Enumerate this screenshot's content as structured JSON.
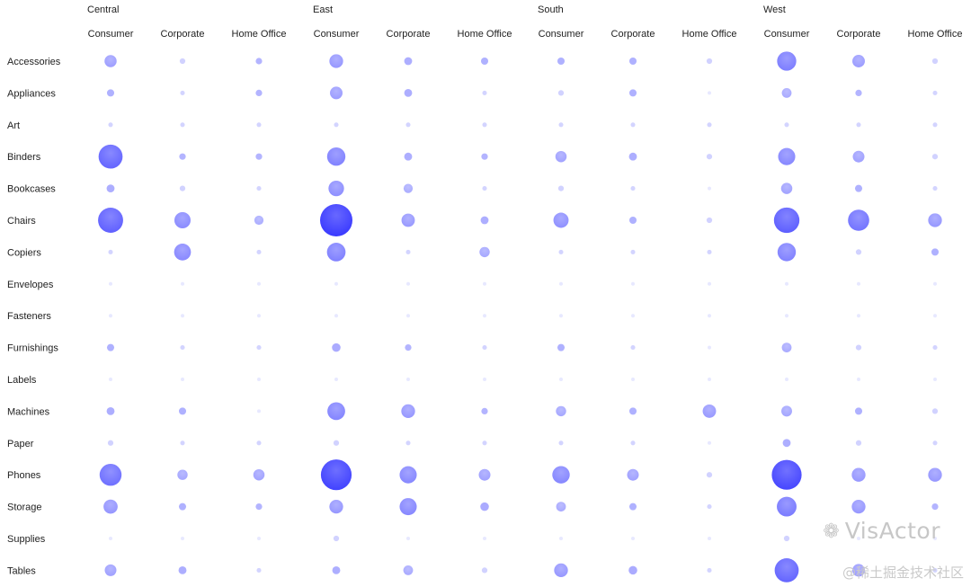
{
  "chart_data": {
    "type": "scatter",
    "subtype": "bubble-matrix",
    "regions": [
      "Central",
      "East",
      "South",
      "West"
    ],
    "segments": [
      "Consumer",
      "Corporate",
      "Home Office"
    ],
    "categories": [
      "Accessories",
      "Appliances",
      "Art",
      "Binders",
      "Bookcases",
      "Chairs",
      "Copiers",
      "Envelopes",
      "Fasteners",
      "Furnishings",
      "Labels",
      "Machines",
      "Paper",
      "Phones",
      "Storage",
      "Supplies",
      "Tables"
    ],
    "value_scale": "relative size 0-100",
    "values": [
      [
        14,
        3,
        4,
        18,
        6,
        5,
        5,
        5,
        3,
        35,
        15,
        3
      ],
      [
        5,
        2,
        4,
        15,
        6,
        2,
        3,
        5,
        1,
        9,
        4,
        2
      ],
      [
        2,
        2,
        2,
        2,
        2,
        2,
        2,
        2,
        2,
        2,
        2,
        2
      ],
      [
        55,
        4,
        4,
        32,
        6,
        4,
        12,
        6,
        3,
        28,
        13,
        3
      ],
      [
        6,
        3,
        2,
        23,
        8,
        2,
        3,
        2,
        1,
        12,
        5,
        2
      ],
      [
        60,
        25,
        8,
        100,
        17,
        6,
        22,
        5,
        3,
        62,
        43,
        18
      ],
      [
        2,
        27,
        2,
        33,
        2,
        10,
        2,
        2,
        2,
        32,
        3,
        5
      ],
      [
        1,
        1,
        1,
        1,
        1,
        1,
        1,
        1,
        1,
        1,
        1,
        1
      ],
      [
        1,
        1,
        1,
        1,
        1,
        1,
        1,
        1,
        1,
        1,
        1,
        1
      ],
      [
        5,
        2,
        2,
        7,
        4,
        2,
        5,
        2,
        1,
        9,
        3,
        2
      ],
      [
        1,
        1,
        1,
        1,
        1,
        1,
        1,
        1,
        1,
        1,
        1,
        1
      ],
      [
        6,
        5,
        1,
        30,
        18,
        4,
        10,
        5,
        17,
        11,
        5,
        3
      ],
      [
        3,
        2,
        2,
        3,
        2,
        2,
        2,
        2,
        1,
        6,
        3,
        2
      ],
      [
        46,
        10,
        12,
        90,
        28,
        13,
        29,
        13,
        3,
        85,
        18,
        18
      ],
      [
        19,
        5,
        4,
        18,
        28,
        7,
        9,
        5,
        2,
        37,
        18,
        4
      ],
      [
        1,
        1,
        1,
        3,
        1,
        1,
        1,
        1,
        1,
        3,
        1,
        1
      ],
      [
        13,
        6,
        2,
        6,
        9,
        3,
        18,
        7,
        2,
        55,
        15,
        2
      ]
    ],
    "color_min": "#c5c7ff",
    "color_max": "#2b2bff",
    "grid": false,
    "legend": "none"
  },
  "watermark": {
    "logo_text": "❁",
    "brand": "VisActor",
    "sub": "@稀土掘金技术社区"
  }
}
